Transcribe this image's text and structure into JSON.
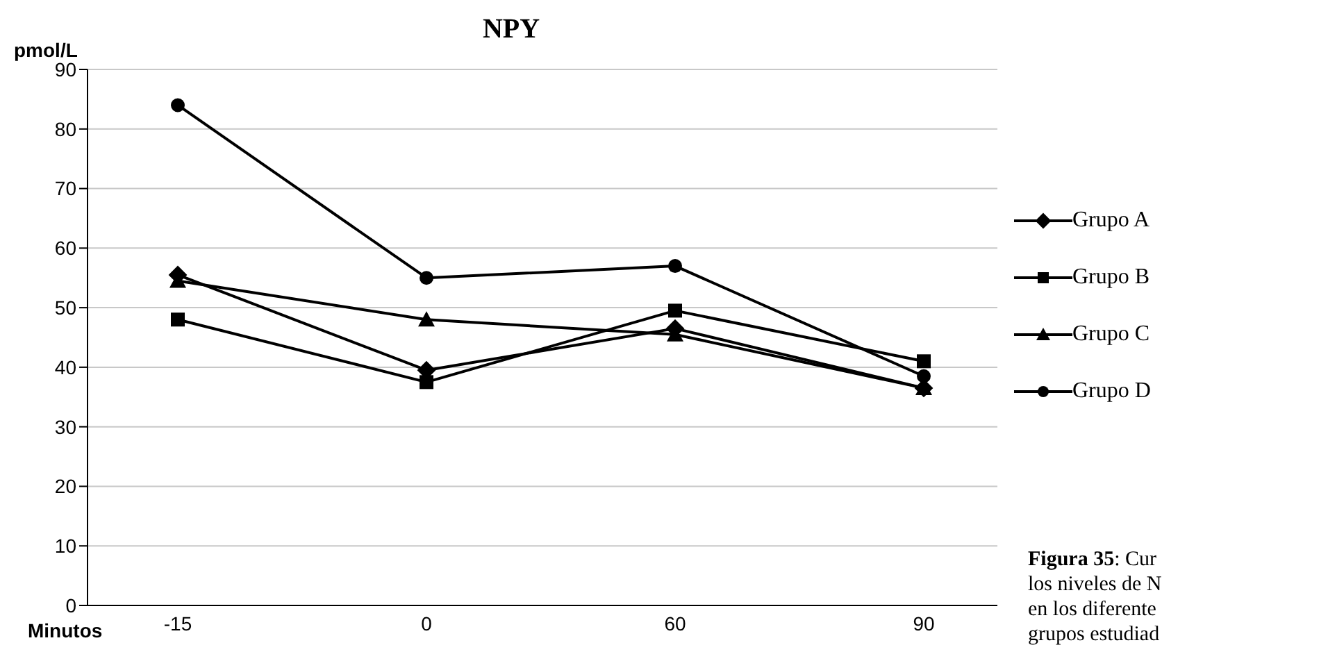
{
  "chart_data": {
    "type": "line",
    "title": "NPY",
    "ylabel": "pmol/L",
    "xlabel": "Minutos",
    "categories": [
      "-15",
      "0",
      "60",
      "90"
    ],
    "series": [
      {
        "name": "Grupo A",
        "color": "#000000",
        "marker": "diamond",
        "values": [
          55.5,
          39.5,
          46.5,
          36.5
        ]
      },
      {
        "name": "Grupo B",
        "color": "#000000",
        "marker": "square",
        "values": [
          48,
          37.5,
          49.5,
          41
        ]
      },
      {
        "name": "Grupo C",
        "color": "#000000",
        "marker": "triangle",
        "values": [
          54.5,
          48,
          45.5,
          36.5
        ]
      },
      {
        "name": "Grupo D",
        "color": "#000000",
        "marker": "circle",
        "values": [
          84,
          55,
          57,
          38.5
        ]
      }
    ],
    "ylim": [
      0,
      90
    ],
    "yticks": [
      0,
      10,
      20,
      30,
      40,
      50,
      60,
      70,
      80,
      90
    ],
    "grid": "y",
    "legend": "right",
    "line_style": "solid",
    "annotations": [
      "Figura 35: Cur\nlos niveles de N\nen los diferente\ngrupos estudiad"
    ]
  }
}
